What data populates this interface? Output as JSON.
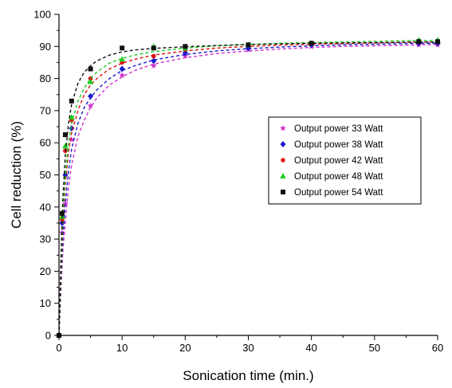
{
  "chart_data": {
    "type": "scatter",
    "title": "",
    "xlabel": "Sonication time (min.)",
    "ylabel": "Cell reduction (%)",
    "xlim": [
      0,
      60
    ],
    "ylim": [
      0,
      100
    ],
    "xticks": [
      0,
      10,
      20,
      30,
      40,
      50,
      60
    ],
    "yticks": [
      0,
      10,
      20,
      30,
      40,
      50,
      60,
      70,
      80,
      90,
      100
    ],
    "grid": false,
    "legend_position": "right-middle",
    "fit_lines": "dashed",
    "x": [
      0,
      0.5,
      1,
      2,
      5,
      10,
      15,
      20,
      30,
      40,
      57,
      60
    ],
    "series": [
      {
        "name": "Output power 33 Watt",
        "marker": "star",
        "color": "#cc33cc",
        "values": [
          0,
          32,
          41,
          61,
          71.5,
          81,
          84,
          87,
          89,
          90,
          90.5,
          90.5
        ],
        "fit": [
          [
            0,
            0
          ],
          [
            0.3,
            14
          ],
          [
            0.6,
            26
          ],
          [
            1,
            35
          ],
          [
            1.5,
            46
          ],
          [
            2,
            53
          ],
          [
            3,
            62
          ],
          [
            4,
            67
          ],
          [
            5,
            71
          ],
          [
            6,
            74
          ],
          [
            8,
            78
          ],
          [
            10,
            80.5
          ],
          [
            12,
            82.5
          ],
          [
            15,
            84.5
          ],
          [
            20,
            86.5
          ],
          [
            25,
            87.8
          ],
          [
            30,
            88.6
          ],
          [
            35,
            89.2
          ],
          [
            40,
            89.7
          ],
          [
            45,
            90
          ],
          [
            50,
            90.2
          ],
          [
            55,
            90.4
          ],
          [
            60,
            90.6
          ]
        ]
      },
      {
        "name": "Output power 38 Watt",
        "marker": "diamond",
        "color": "#1a1acc",
        "values": [
          0,
          35,
          50,
          64.5,
          74.5,
          83,
          85.5,
          88,
          89.5,
          90.5,
          91,
          91
        ],
        "fit": [
          [
            0,
            0
          ],
          [
            0.3,
            17
          ],
          [
            0.6,
            30
          ],
          [
            1,
            41
          ],
          [
            1.5,
            51
          ],
          [
            2,
            58
          ],
          [
            3,
            66
          ],
          [
            4,
            71
          ],
          [
            5,
            74
          ],
          [
            6,
            76.5
          ],
          [
            8,
            80
          ],
          [
            10,
            82.5
          ],
          [
            12,
            84
          ],
          [
            15,
            85.8
          ],
          [
            20,
            87.5
          ],
          [
            25,
            88.6
          ],
          [
            30,
            89.3
          ],
          [
            35,
            89.8
          ],
          [
            40,
            90.2
          ],
          [
            45,
            90.5
          ],
          [
            50,
            90.7
          ],
          [
            55,
            90.9
          ],
          [
            60,
            91
          ]
        ]
      },
      {
        "name": "Output power 42 Watt",
        "marker": "circle",
        "color": "#dd1111",
        "values": [
          0,
          36,
          57.5,
          67,
          80,
          85,
          87,
          89,
          90.5,
          91,
          91.5,
          91.5
        ],
        "fit": [
          [
            0,
            0
          ],
          [
            0.3,
            19
          ],
          [
            0.6,
            35
          ],
          [
            1,
            47
          ],
          [
            1.5,
            57
          ],
          [
            2,
            63
          ],
          [
            3,
            70
          ],
          [
            4,
            75
          ],
          [
            5,
            78
          ],
          [
            6,
            80
          ],
          [
            8,
            83
          ],
          [
            10,
            84.8
          ],
          [
            12,
            86
          ],
          [
            15,
            87.3
          ],
          [
            20,
            88.6
          ],
          [
            25,
            89.5
          ],
          [
            30,
            90
          ],
          [
            35,
            90.4
          ],
          [
            40,
            90.7
          ],
          [
            45,
            90.9
          ],
          [
            50,
            91.1
          ],
          [
            55,
            91.3
          ],
          [
            60,
            91.4
          ]
        ]
      },
      {
        "name": "Output power 48 Watt",
        "marker": "triangle",
        "color": "#22cc22",
        "values": [
          0,
          37,
          59,
          68,
          79,
          86,
          90,
          89.5,
          90.5,
          91,
          92,
          92
        ],
        "fit": [
          [
            0,
            0
          ],
          [
            0.3,
            20
          ],
          [
            0.6,
            37
          ],
          [
            1,
            50
          ],
          [
            1.5,
            60
          ],
          [
            2,
            66
          ],
          [
            3,
            73
          ],
          [
            4,
            77
          ],
          [
            5,
            80
          ],
          [
            6,
            82
          ],
          [
            8,
            84.8
          ],
          [
            10,
            86.3
          ],
          [
            12,
            87.3
          ],
          [
            15,
            88.4
          ],
          [
            20,
            89.5
          ],
          [
            25,
            90.2
          ],
          [
            30,
            90.6
          ],
          [
            35,
            91
          ],
          [
            40,
            91.2
          ],
          [
            45,
            91.4
          ],
          [
            50,
            91.6
          ],
          [
            55,
            91.8
          ],
          [
            60,
            91.9
          ]
        ]
      },
      {
        "name": "Output power 54 Watt",
        "marker": "square",
        "color": "#111111",
        "values": [
          0,
          38,
          62.5,
          73,
          83,
          89.5,
          89.5,
          90,
          90.5,
          91,
          91.5,
          91.5
        ],
        "fit": [
          [
            0,
            0
          ],
          [
            0.3,
            23
          ],
          [
            0.6,
            42
          ],
          [
            1,
            56
          ],
          [
            1.5,
            66
          ],
          [
            2,
            72
          ],
          [
            3,
            78.5
          ],
          [
            4,
            82
          ],
          [
            5,
            84
          ],
          [
            6,
            85.5
          ],
          [
            8,
            87.3
          ],
          [
            10,
            88.3
          ],
          [
            12,
            88.9
          ],
          [
            15,
            89.4
          ],
          [
            20,
            89.9
          ],
          [
            25,
            90.3
          ],
          [
            30,
            90.6
          ],
          [
            35,
            90.8
          ],
          [
            40,
            91
          ],
          [
            45,
            91.1
          ],
          [
            50,
            91.2
          ],
          [
            55,
            91.3
          ],
          [
            60,
            91.4
          ]
        ]
      }
    ]
  }
}
